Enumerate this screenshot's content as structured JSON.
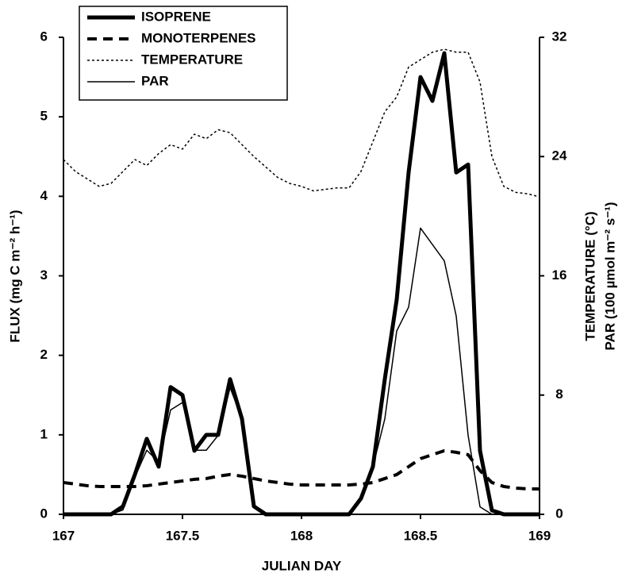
{
  "chart_data": {
    "type": "line",
    "xlabel": "JULIAN DAY",
    "ylabel": "FLUX (mg C m⁻² h⁻¹)",
    "y2label": [
      "TEMPERATURE (°C)",
      "PAR (100 µmol m⁻² s⁻¹)"
    ],
    "x": [
      167,
      167.05,
      167.1,
      167.15,
      167.2,
      167.25,
      167.3,
      167.35,
      167.4,
      167.45,
      167.5,
      167.55,
      167.6,
      167.65,
      167.7,
      167.75,
      167.8,
      167.85,
      167.9,
      167.95,
      168,
      168.05,
      168.1,
      168.15,
      168.2,
      168.25,
      168.3,
      168.35,
      168.4,
      168.45,
      168.5,
      168.55,
      168.6,
      168.65,
      168.7,
      168.75,
      168.8,
      168.85,
      168.9,
      168.95,
      169
    ],
    "series": [
      {
        "name": "ISOPRENE",
        "color": "#000000",
        "style": "thick",
        "values": [
          0,
          0,
          0,
          0,
          0,
          0.1,
          0.5,
          0.95,
          0.6,
          1.6,
          1.5,
          0.8,
          1.0,
          1.0,
          1.7,
          1.2,
          0.1,
          0,
          0,
          0,
          0,
          0,
          0,
          0,
          0,
          0.2,
          0.6,
          1.7,
          2.7,
          4.3,
          5.5,
          5.2,
          5.8,
          4.3,
          4.4,
          0.8,
          0.05,
          0,
          0,
          0,
          0
        ]
      },
      {
        "name": "MONOTERPENES",
        "color": "#000000",
        "style": "dashed",
        "values": [
          0.4,
          0.38,
          0.36,
          0.35,
          0.35,
          0.35,
          0.35,
          0.36,
          0.38,
          0.4,
          0.42,
          0.44,
          0.45,
          0.48,
          0.5,
          0.48,
          0.45,
          0.42,
          0.4,
          0.38,
          0.37,
          0.37,
          0.37,
          0.37,
          0.37,
          0.38,
          0.4,
          0.45,
          0.5,
          0.6,
          0.7,
          0.75,
          0.8,
          0.78,
          0.75,
          0.55,
          0.4,
          0.35,
          0.33,
          0.32,
          0.32
        ]
      },
      {
        "name": "TEMPERATURE",
        "color": "#000000",
        "style": "dotted",
        "axis": "y2",
        "values": [
          23.8,
          23,
          22.5,
          22,
          22.2,
          23,
          23.8,
          23.4,
          24.2,
          24.8,
          24.5,
          25.5,
          25.2,
          25.8,
          25.6,
          24.8,
          24,
          23.3,
          22.6,
          22.2,
          22,
          21.7,
          21.8,
          21.9,
          21.9,
          23,
          25,
          27,
          28,
          30,
          30.5,
          31,
          31.2,
          31,
          31,
          29,
          24,
          22,
          21.6,
          21.5,
          21.3
        ]
      },
      {
        "name": "PAR",
        "color": "#000000",
        "style": "thin",
        "axis": "y2",
        "values": [
          0,
          0,
          0,
          0,
          0,
          0.3,
          2.5,
          4.3,
          3.5,
          7,
          7.5,
          4.3,
          4.3,
          5.3,
          8.5,
          6.4,
          0.5,
          0,
          0,
          0,
          0,
          0,
          0,
          0,
          0,
          1,
          3.2,
          6.4,
          12.3,
          13.9,
          19.2,
          18.1,
          17,
          13.3,
          5.3,
          0.5,
          0,
          0,
          0,
          0,
          0
        ]
      }
    ],
    "xlim": [
      167,
      169
    ],
    "xticks": [
      167,
      167.5,
      168,
      168.5,
      169
    ],
    "ylim": [
      0,
      6
    ],
    "yticks": [
      0,
      1,
      2,
      3,
      4,
      5,
      6
    ],
    "y2lim": [
      0,
      32
    ],
    "y2ticks": [
      0,
      8,
      16,
      24,
      32
    ],
    "legend": "upper left"
  }
}
